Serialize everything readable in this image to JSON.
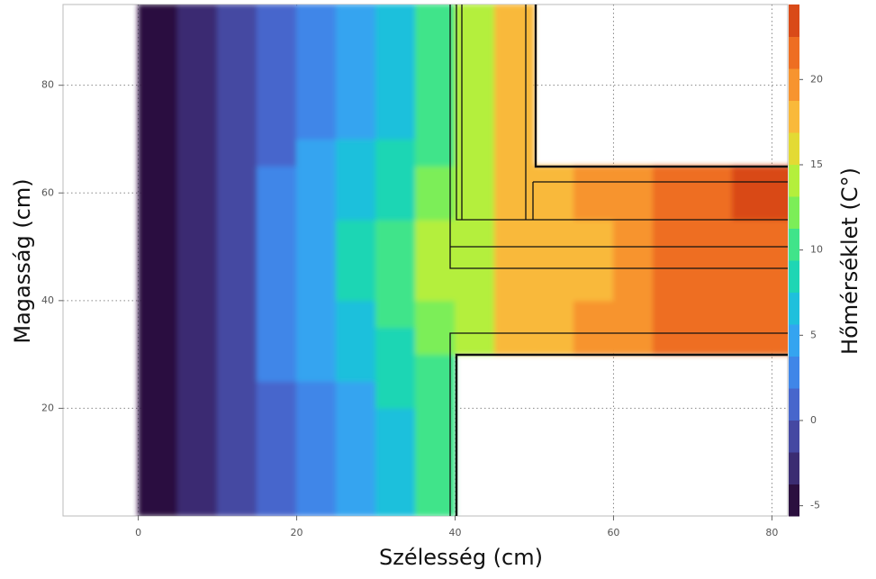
{
  "chart_data": {
    "type": "heatmap",
    "x_label": "Szélesség (cm)",
    "y_label": "Magasság (cm)",
    "x": [
      2.5,
      7.5,
      12.5,
      17.5,
      22.5,
      27.5,
      32.5,
      37.5,
      42.5,
      47.5,
      52.5,
      57.5,
      62.5,
      67.5,
      72.5,
      77.5,
      82.5
    ],
    "y": [
      2.5,
      7.5,
      12.5,
      17.5,
      22.5,
      27.5,
      32.5,
      37.5,
      42.5,
      47.5,
      52.5,
      57.5,
      62.5,
      67.5,
      72.5,
      77.5,
      82.5,
      87.5,
      92.5
    ],
    "values": [
      [
        -5,
        -3,
        -1,
        1,
        3,
        5,
        7,
        10,
        null,
        null,
        null,
        null,
        null,
        null,
        null,
        null,
        null
      ],
      [
        -5,
        -3,
        -1,
        1,
        3,
        5,
        7,
        10,
        null,
        null,
        null,
        null,
        null,
        null,
        null,
        null,
        null
      ],
      [
        -5,
        -3,
        -1,
        1,
        3,
        5,
        7,
        10,
        null,
        null,
        null,
        null,
        null,
        null,
        null,
        null,
        null
      ],
      [
        -5,
        -3,
        -1,
        1,
        3,
        5,
        7,
        10,
        null,
        null,
        null,
        null,
        null,
        null,
        null,
        null,
        null
      ],
      [
        -5,
        -3,
        -1,
        1,
        3,
        5,
        8,
        11,
        null,
        null,
        null,
        null,
        null,
        null,
        null,
        null,
        null
      ],
      [
        -5,
        -3,
        -1,
        2,
        4,
        6,
        8,
        11,
        null,
        null,
        null,
        null,
        null,
        null,
        null,
        null,
        null
      ],
      [
        -5,
        -3,
        0,
        2,
        4,
        6,
        9,
        12,
        15,
        17,
        18,
        19,
        20,
        21,
        21,
        22,
        22
      ],
      [
        -5,
        -2,
        0,
        2,
        5,
        7,
        10,
        13,
        15,
        17,
        18,
        19,
        20,
        21,
        21,
        22,
        22
      ],
      [
        -5,
        -2,
        0,
        3,
        5,
        8,
        10,
        14,
        15,
        17,
        17,
        18,
        19,
        21,
        21,
        22,
        22
      ],
      [
        -5,
        -2,
        0,
        3,
        5,
        8,
        10,
        14,
        15,
        17,
        17,
        18,
        19,
        21,
        21,
        22,
        22
      ],
      [
        -5,
        -2,
        0,
        3,
        5,
        8,
        10,
        14,
        15,
        17,
        17,
        18,
        19,
        21,
        21,
        22,
        22
      ],
      [
        -5,
        -2,
        0,
        2,
        5,
        7,
        9,
        13,
        15,
        17,
        18,
        19,
        20,
        21,
        21,
        23,
        23
      ],
      [
        -5,
        -3,
        0,
        2,
        4,
        6,
        9,
        12,
        15,
        17,
        18,
        19,
        20,
        21,
        21,
        23,
        23
      ],
      [
        -5,
        -3,
        -1,
        1,
        4,
        6,
        8,
        11,
        14,
        17,
        null,
        null,
        null,
        null,
        null,
        null,
        null
      ],
      [
        -5,
        -3,
        -1,
        1,
        3,
        5,
        7,
        11,
        14,
        17,
        null,
        null,
        null,
        null,
        null,
        null,
        null
      ],
      [
        -5,
        -3,
        -1,
        1,
        3,
        5,
        7,
        10,
        14,
        17,
        null,
        null,
        null,
        null,
        null,
        null,
        null
      ],
      [
        -5,
        -3,
        -1,
        1,
        3,
        5,
        7,
        10,
        14,
        17,
        null,
        null,
        null,
        null,
        null,
        null,
        null
      ],
      [
        -5,
        -3,
        -1,
        1,
        3,
        5,
        7,
        10,
        14,
        17,
        null,
        null,
        null,
        null,
        null,
        null,
        null
      ],
      [
        -5,
        -3,
        -1,
        1,
        3,
        5,
        7,
        10,
        14,
        17,
        null,
        null,
        null,
        null,
        null,
        null,
        null
      ]
    ],
    "xlim": [
      -9.5,
      82
    ],
    "ylim": [
      0,
      95
    ],
    "xticks": [
      0,
      20,
      40,
      60,
      80
    ],
    "yticks": [
      20,
      40,
      60,
      80
    ],
    "grid": true,
    "colorbar": {
      "label": "Hőmérséklet (C°)",
      "lim": [
        -5.6,
        24.4
      ],
      "ticks": [
        -5,
        0,
        5,
        10,
        15,
        20
      ],
      "colors": [
        "#2b0f3f",
        "#3b2c72",
        "#4548a2",
        "#4766cc",
        "#3f86e8",
        "#34a4f0",
        "#1fc0dc",
        "#1ed6b4",
        "#40e48a",
        "#7cee58",
        "#b4ef3c",
        "#e3da34",
        "#f9b93a",
        "#f7942f",
        "#ee6e22",
        "#d94a18"
      ]
    }
  }
}
